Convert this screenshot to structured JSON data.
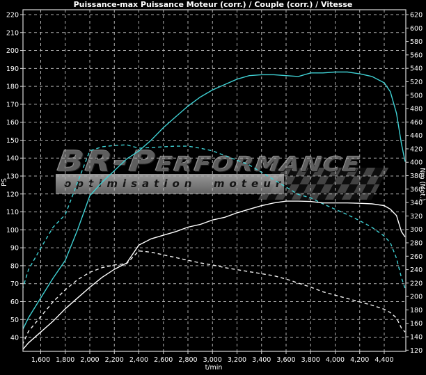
{
  "title": "Puissance-max Puissance Moteur (corr.) / Couple (corr.) / Vitesse",
  "watermark": {
    "brand_prefix": "BR-P",
    "brand_suffix": "ERFORMANCE",
    "tagline": "optimisation  moteur"
  },
  "colors": {
    "background": "#000000",
    "grid": "#b0b0b0",
    "frame": "#d9d9d9",
    "text": "#ffffff",
    "after": "#3fd1d4",
    "before": "#ffffff"
  },
  "chart_data": {
    "type": "line",
    "title": "Puissance-max Puissance Moteur (corr.) / Couple (corr.) / Vitesse",
    "xlabel": "t/min",
    "ylabel_left": "PS",
    "ylabel_right": "Nm (Mot.)",
    "grid": true,
    "x_range": [
      1455,
      4575
    ],
    "left_axis_range_PS": [
      32,
      223
    ],
    "right_axis_range_Nm": [
      118,
      627
    ],
    "left_ticks_PS": [
      220,
      210,
      200,
      190,
      180,
      170,
      160,
      150,
      140,
      130,
      120,
      110,
      100,
      90,
      80,
      70,
      60,
      50,
      40
    ],
    "right_ticks_Nm": [
      620,
      600,
      580,
      560,
      540,
      520,
      500,
      480,
      460,
      440,
      420,
      400,
      380,
      360,
      340,
      320,
      300,
      280,
      260,
      240,
      220,
      200,
      180,
      160,
      140,
      120
    ],
    "x_tick_values": [
      1600,
      1800,
      2000,
      2200,
      2400,
      2600,
      2800,
      3000,
      3200,
      3400,
      3600,
      3800,
      4000,
      4200,
      4400
    ],
    "x_tick_labels": [
      "1,600",
      "1,800",
      "2,000",
      "2,200",
      "2,400",
      "2,600",
      "2,800",
      "3,000",
      "3,200",
      "3,400",
      "3,600",
      "3,800",
      "4,000",
      "4,200",
      "4,400"
    ],
    "rpm": [
      1450,
      1500,
      1600,
      1700,
      1800,
      1900,
      2000,
      2100,
      2200,
      2300,
      2400,
      2500,
      2600,
      2700,
      2800,
      2900,
      3000,
      3100,
      3200,
      3300,
      3400,
      3500,
      3600,
      3700,
      3800,
      3900,
      4000,
      4100,
      4200,
      4300,
      4400,
      4450,
      4500,
      4540,
      4570
    ],
    "series": [
      {
        "name": "puissance-corrigee-apres",
        "axis": "left",
        "unit": "PS",
        "color": "#3fd1d4",
        "dashed": false,
        "peak": "188 PS @ 4000 t/min",
        "values": [
          44,
          51,
          62,
          73,
          83,
          100,
          119,
          126.5,
          133,
          139.5,
          144,
          150,
          157,
          163,
          169,
          174,
          178,
          181,
          184,
          186,
          186.5,
          186.5,
          186,
          185.5,
          187.5,
          187.5,
          188,
          188,
          187,
          185.5,
          182,
          177,
          165,
          148,
          138
        ]
      },
      {
        "name": "couple-corrige-apres",
        "axis": "right",
        "unit": "Nm",
        "color": "#3fd1d4",
        "dashed": true,
        "peak": "426 Nm @ 2300 t/min",
        "values": [
          210,
          240,
          272,
          303,
          322,
          370,
          417,
          423,
          425,
          426,
          421,
          422,
          423,
          424,
          424,
          421,
          417,
          410,
          403,
          396,
          385,
          374,
          363,
          352,
          347,
          338,
          330,
          322,
          313,
          303,
          290,
          280,
          257,
          228,
          212
        ]
      },
      {
        "name": "puissance-corrigee-avant",
        "axis": "left",
        "unit": "PS",
        "color": "#ffffff",
        "dashed": false,
        "peak": "116 PS @ 3600 t/min",
        "values": [
          33,
          37,
          43,
          49,
          56,
          62,
          68,
          73.5,
          78,
          81.5,
          91.5,
          95,
          97,
          99,
          101.5,
          103,
          105.5,
          107,
          109.5,
          111.5,
          113.5,
          115,
          116,
          116,
          115.8,
          115,
          115,
          115,
          114.8,
          114.5,
          113.5,
          111.5,
          108,
          99,
          96
        ]
      },
      {
        "name": "couple-corrige-avant",
        "axis": "right",
        "unit": "Nm",
        "color": "#f2f2f2",
        "dashed": true,
        "peak": "268 Nm @ 2400 t/min",
        "values": [
          128,
          148,
          170,
          192,
          210,
          225,
          236,
          243,
          247,
          249,
          268,
          266,
          262,
          258,
          254,
          250,
          247,
          243,
          240,
          237,
          234,
          231,
          226,
          220,
          214,
          207,
          202,
          197,
          192,
          187,
          181,
          176,
          168,
          153,
          147
        ]
      }
    ]
  }
}
